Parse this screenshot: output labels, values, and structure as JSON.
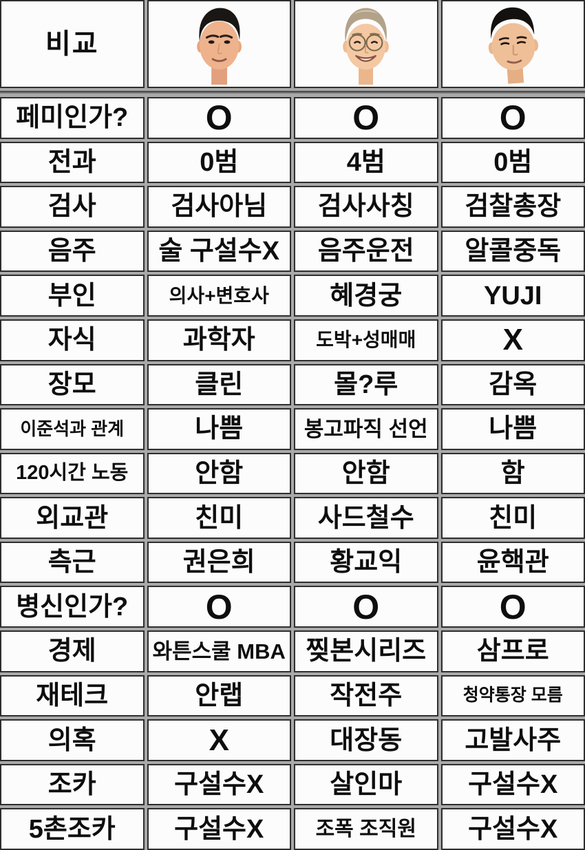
{
  "table": {
    "corner_label": "비교",
    "header_photos": [
      {
        "icon": "ahn-cheolsoo-face-photo"
      },
      {
        "icon": "lee-jaemyung-face-photo"
      },
      {
        "icon": "yoon-sukyeol-face-photo"
      }
    ],
    "rows": [
      {
        "label": "페미인가?",
        "values": [
          "O",
          "O",
          "O"
        ]
      },
      {
        "label": "전과",
        "values": [
          "0범",
          "4범",
          "0범"
        ]
      },
      {
        "label": "검사",
        "values": [
          "검사아님",
          "검사사칭",
          "검찰총장"
        ]
      },
      {
        "label": "음주",
        "values": [
          "술 구설수X",
          "음주운전",
          "알콜중독"
        ]
      },
      {
        "label": "부인",
        "values": [
          "의사+변호사",
          "혜경궁",
          "YUJI"
        ]
      },
      {
        "label": "자식",
        "values": [
          "과학자",
          "도박+성매매",
          "X"
        ]
      },
      {
        "label": "장모",
        "values": [
          "클린",
          "몰?루",
          "감옥"
        ]
      },
      {
        "label": "이준석과 관계",
        "values": [
          "나쁨",
          "봉고파직 선언",
          "나쁨"
        ]
      },
      {
        "label": "120시간 노동",
        "values": [
          "안함",
          "안함",
          "함"
        ]
      },
      {
        "label": "외교관",
        "values": [
          "친미",
          "사드철수",
          "친미"
        ]
      },
      {
        "label": "측근",
        "values": [
          "권은희",
          "황교익",
          "윤핵관"
        ]
      },
      {
        "label": "병신인가?",
        "values": [
          "O",
          "O",
          "O"
        ]
      },
      {
        "label": "경제",
        "values": [
          "와튼스쿨 MBA",
          "찢본시리즈",
          "삼프로"
        ]
      },
      {
        "label": "재테크",
        "values": [
          "안랩",
          "작전주",
          "청약통장 모름"
        ]
      },
      {
        "label": "의혹",
        "values": [
          "X",
          "대장동",
          "고발사주"
        ]
      },
      {
        "label": "조카",
        "values": [
          "구설수X",
          "살인마",
          "구설수X"
        ]
      },
      {
        "label": "5촌조카",
        "values": [
          "구설수X",
          "조폭 조직원",
          "구설수X"
        ]
      }
    ]
  },
  "colors": {
    "cell_background": "#fcfcfc",
    "grid_line": "#2e2e2e",
    "gap_background": "#a9a9a9",
    "text": "#0e0e0e"
  }
}
